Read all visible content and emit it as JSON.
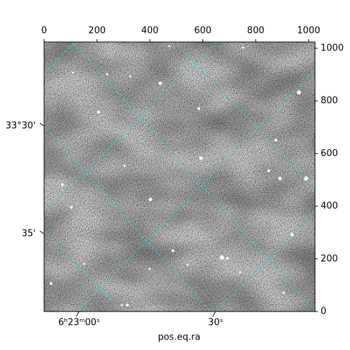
{
  "chart_data": {
    "type": "image",
    "xlabel": "pos.eq.ra",
    "xlim": [
      0,
      1024
    ],
    "xticks": [
      0,
      200,
      400,
      600,
      800,
      1000
    ],
    "ylim": [
      0,
      1024
    ],
    "yticks": [
      0,
      200,
      400,
      600,
      800,
      1000
    ],
    "ra_tick_labels": [
      "6ʰ23ᵐ00ˢ",
      "30ˢ"
    ],
    "dec_tick_labels": [
      "33°30'",
      "35'"
    ]
  }
}
